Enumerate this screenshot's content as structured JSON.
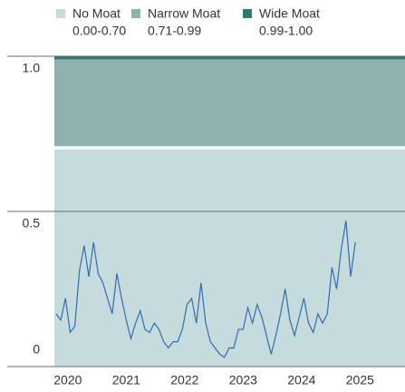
{
  "chart_data": {
    "type": "line",
    "bands": [
      {
        "name": "No Moat",
        "range": "0.00-0.70",
        "from": 0,
        "to": 0.7,
        "color": "#c6dbdc"
      },
      {
        "name": "Narrow Moat",
        "range": "0.71-0.99",
        "from": 0.71,
        "to": 0.99,
        "color": "#8fb2b1"
      },
      {
        "name": "Wide Moat",
        "range": "0.99-1.00",
        "from": 0.99,
        "to": 1.0,
        "color": "#2e7a72"
      }
    ],
    "x": [
      2019.8,
      2019.88,
      2019.96,
      2020.04,
      2020.12,
      2020.2,
      2020.28,
      2020.36,
      2020.44,
      2020.52,
      2020.6,
      2020.68,
      2020.76,
      2020.84,
      2020.92,
      2021.0,
      2021.08,
      2021.16,
      2021.24,
      2021.32,
      2021.4,
      2021.48,
      2021.56,
      2021.64,
      2021.72,
      2021.8,
      2021.88,
      2021.96,
      2022.04,
      2022.12,
      2022.2,
      2022.28,
      2022.36,
      2022.44,
      2022.52,
      2022.6,
      2022.68,
      2022.76,
      2022.84,
      2022.92,
      2023.0,
      2023.08,
      2023.16,
      2023.24,
      2023.32,
      2023.4,
      2023.48,
      2023.56,
      2023.64,
      2023.72,
      2023.8,
      2023.88,
      2023.96,
      2024.04,
      2024.12,
      2024.2,
      2024.28,
      2024.36,
      2024.44,
      2024.52,
      2024.6,
      2024.68,
      2024.76,
      2024.84,
      2024.92
    ],
    "series": [
      {
        "color": "#2f6db5",
        "values": [
          0.17,
          0.15,
          0.22,
          0.11,
          0.13,
          0.31,
          0.39,
          0.29,
          0.4,
          0.3,
          0.27,
          0.22,
          0.17,
          0.3,
          0.22,
          0.15,
          0.09,
          0.14,
          0.18,
          0.12,
          0.11,
          0.14,
          0.12,
          0.08,
          0.06,
          0.08,
          0.08,
          0.12,
          0.2,
          0.22,
          0.14,
          0.27,
          0.14,
          0.08,
          0.06,
          0.04,
          0.03,
          0.06,
          0.06,
          0.12,
          0.12,
          0.19,
          0.14,
          0.2,
          0.16,
          0.1,
          0.04,
          0.1,
          0.17,
          0.25,
          0.15,
          0.1,
          0.16,
          0.22,
          0.14,
          0.11,
          0.17,
          0.14,
          0.17,
          0.32,
          0.25,
          0.38,
          0.47,
          0.29,
          0.4
        ]
      }
    ],
    "xlim": [
      2019.77,
      2025.77
    ],
    "xticks": [
      2020,
      2021,
      2022,
      2023,
      2024,
      2025
    ],
    "ylim": [
      0,
      1
    ],
    "yticks": [
      0.0,
      0.5,
      {
        "value": 1.0,
        "label": "1.0"
      }
    ],
    "grid": true
  }
}
